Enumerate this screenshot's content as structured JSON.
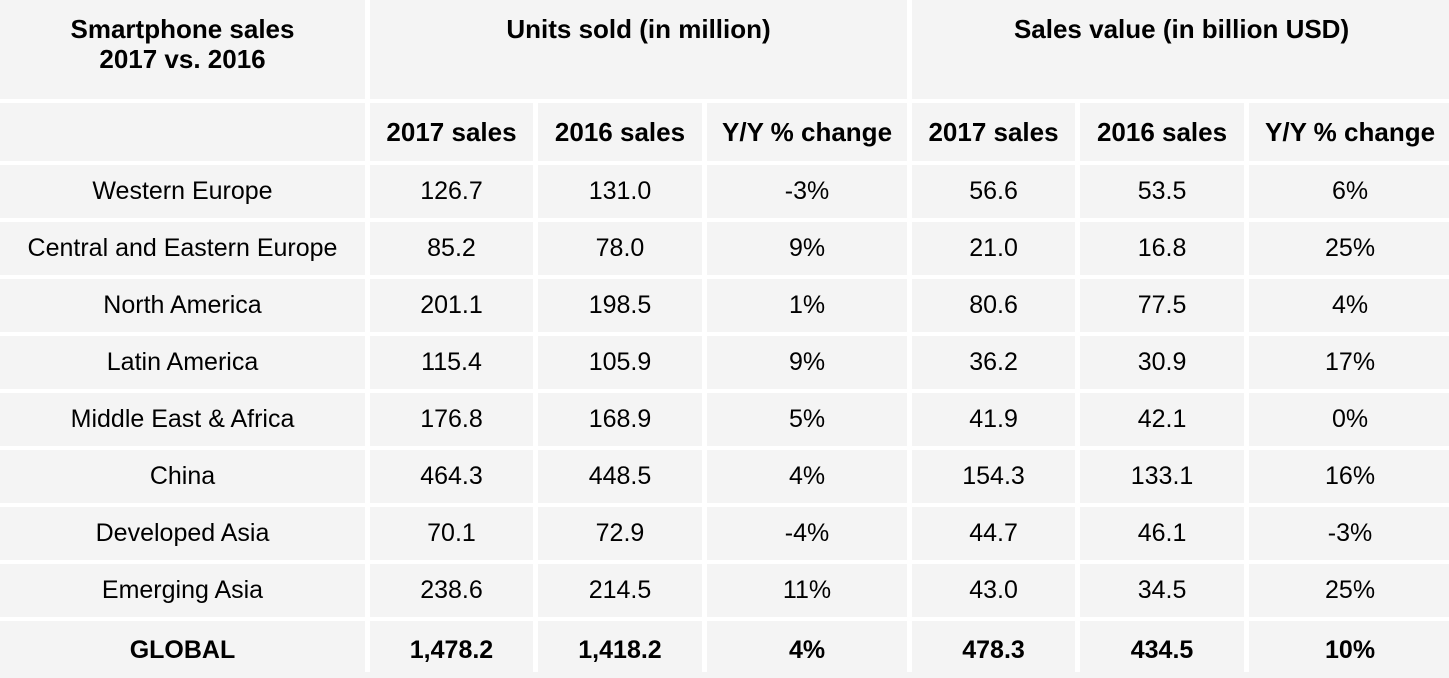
{
  "table": {
    "title_line1": "Smartphone sales",
    "title_line2": "2017 vs. 2016",
    "group_headers": [
      "Units sold (in million)",
      "Sales value (in billion USD)"
    ],
    "sub_headers": [
      "2017 sales",
      "2016 sales",
      "Y/Y % change",
      "2017 sales",
      "2016 sales",
      "Y/Y % change"
    ],
    "rows": [
      {
        "region": "Western Europe",
        "values": [
          "126.7",
          "131.0",
          "-3%",
          "56.6",
          "53.5",
          "6%"
        ]
      },
      {
        "region": "Central and Eastern Europe",
        "values": [
          "85.2",
          "78.0",
          "9%",
          "21.0",
          "16.8",
          "25%"
        ]
      },
      {
        "region": "North America",
        "values": [
          "201.1",
          "198.5",
          "1%",
          "80.6",
          "77.5",
          "4%"
        ]
      },
      {
        "region": "Latin America",
        "values": [
          "115.4",
          "105.9",
          "9%",
          "36.2",
          "30.9",
          "17%"
        ]
      },
      {
        "region": "Middle East & Africa",
        "values": [
          "176.8",
          "168.9",
          "5%",
          "41.9",
          "42.1",
          "0%"
        ]
      },
      {
        "region": "China",
        "values": [
          "464.3",
          "448.5",
          "4%",
          "154.3",
          "133.1",
          "16%"
        ]
      },
      {
        "region": "Developed Asia",
        "values": [
          "70.1",
          "72.9",
          "-4%",
          "44.7",
          "46.1",
          "-3%"
        ]
      },
      {
        "region": "Emerging Asia",
        "values": [
          "238.6",
          "214.5",
          "11%",
          "43.0",
          "34.5",
          "25%"
        ]
      }
    ],
    "total_row": {
      "region": "GLOBAL",
      "values": [
        "1,478.2",
        "1,418.2",
        "4%",
        "478.3",
        "434.5",
        "10%"
      ]
    }
  },
  "colors": {
    "cell_background": "#f4f4f4",
    "gap": "#ffffff",
    "text": "#000000"
  },
  "chart_data": {
    "type": "table",
    "title": "Smartphone sales 2017 vs. 2016",
    "column_groups": [
      {
        "label": "Units sold (in million)",
        "columns": [
          "2017 sales",
          "2016 sales",
          "Y/Y % change"
        ]
      },
      {
        "label": "Sales value (in billion USD)",
        "columns": [
          "2017 sales",
          "2016 sales",
          "Y/Y % change"
        ]
      }
    ],
    "rows": [
      {
        "region": "Western Europe",
        "units_2017": 126.7,
        "units_2016": 131.0,
        "units_yoy_pct": -3,
        "value_2017": 56.6,
        "value_2016": 53.5,
        "value_yoy_pct": 6
      },
      {
        "region": "Central and Eastern Europe",
        "units_2017": 85.2,
        "units_2016": 78.0,
        "units_yoy_pct": 9,
        "value_2017": 21.0,
        "value_2016": 16.8,
        "value_yoy_pct": 25
      },
      {
        "region": "North America",
        "units_2017": 201.1,
        "units_2016": 198.5,
        "units_yoy_pct": 1,
        "value_2017": 80.6,
        "value_2016": 77.5,
        "value_yoy_pct": 4
      },
      {
        "region": "Latin America",
        "units_2017": 115.4,
        "units_2016": 105.9,
        "units_yoy_pct": 9,
        "value_2017": 36.2,
        "value_2016": 30.9,
        "value_yoy_pct": 17
      },
      {
        "region": "Middle East & Africa",
        "units_2017": 176.8,
        "units_2016": 168.9,
        "units_yoy_pct": 5,
        "value_2017": 41.9,
        "value_2016": 42.1,
        "value_yoy_pct": 0
      },
      {
        "region": "China",
        "units_2017": 464.3,
        "units_2016": 448.5,
        "units_yoy_pct": 4,
        "value_2017": 154.3,
        "value_2016": 133.1,
        "value_yoy_pct": 16
      },
      {
        "region": "Developed Asia",
        "units_2017": 70.1,
        "units_2016": 72.9,
        "units_yoy_pct": -4,
        "value_2017": 44.7,
        "value_2016": 46.1,
        "value_yoy_pct": -3
      },
      {
        "region": "Emerging Asia",
        "units_2017": 238.6,
        "units_2016": 214.5,
        "units_yoy_pct": 11,
        "value_2017": 43.0,
        "value_2016": 34.5,
        "value_yoy_pct": 25
      },
      {
        "region": "GLOBAL",
        "is_total": true,
        "units_2017": 1478.2,
        "units_2016": 1418.2,
        "units_yoy_pct": 4,
        "value_2017": 478.3,
        "value_2016": 434.5,
        "value_yoy_pct": 10
      }
    ]
  }
}
